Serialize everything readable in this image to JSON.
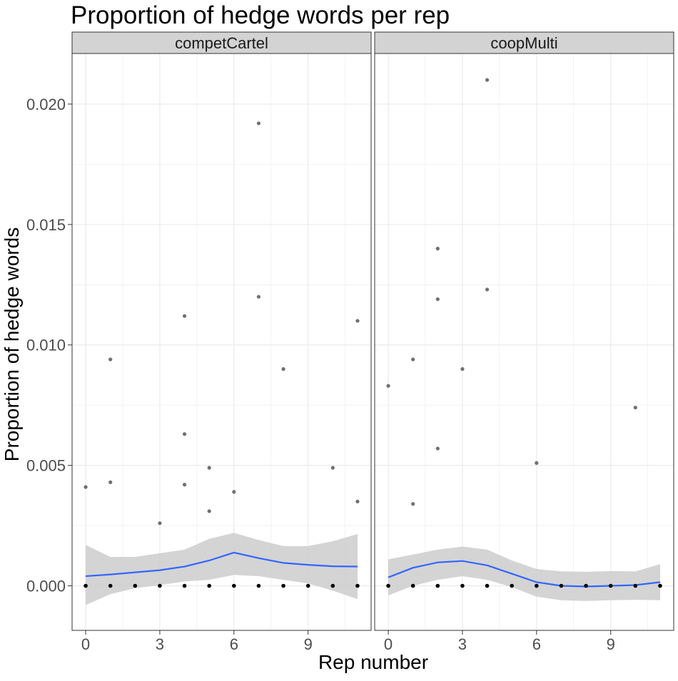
{
  "chart_data": {
    "type": "scatter",
    "title": "Proportion of hedge words per rep",
    "xlabel": "Rep number",
    "ylabel": "Proportion of hedge words",
    "xlim": [
      -0.55,
      11.55
    ],
    "ylim": [
      -0.00185,
      0.0221
    ],
    "x_ticks": [
      0,
      3,
      6,
      9
    ],
    "x_tick_labels": [
      "0",
      "3",
      "6",
      "9"
    ],
    "y_ticks": [
      0.0,
      0.005,
      0.01,
      0.015,
      0.02
    ],
    "y_tick_labels": [
      "0.000",
      "0.005",
      "0.010",
      "0.015",
      "0.020"
    ],
    "grid": true,
    "colors": {
      "point": "#707070",
      "zero_point": "#000000",
      "smooth_line": "#3366FF",
      "ribbon": "#cccccc",
      "strip_fill": "#d3d3d3",
      "grid": "#ebebeb",
      "panel_border": "#333333"
    },
    "panels": [
      {
        "name": "competCartel",
        "points": [
          {
            "x": 0,
            "y": 0.0041
          },
          {
            "x": 1,
            "y": 0.0094
          },
          {
            "x": 1,
            "y": 0.0043
          },
          {
            "x": 3,
            "y": 0.0026
          },
          {
            "x": 4,
            "y": 0.0112
          },
          {
            "x": 4,
            "y": 0.0063
          },
          {
            "x": 4,
            "y": 0.0042
          },
          {
            "x": 5,
            "y": 0.0049
          },
          {
            "x": 5,
            "y": 0.0031
          },
          {
            "x": 6,
            "y": 0.0039
          },
          {
            "x": 7,
            "y": 0.0192
          },
          {
            "x": 7,
            "y": 0.012
          },
          {
            "x": 8,
            "y": 0.009
          },
          {
            "x": 10,
            "y": 0.0049
          },
          {
            "x": 11,
            "y": 0.011
          },
          {
            "x": 11,
            "y": 0.0035
          }
        ],
        "zero_points_x": [
          0,
          1,
          2,
          3,
          4,
          5,
          6,
          7,
          8,
          9,
          10,
          11
        ],
        "smooth": {
          "x": [
            0,
            1,
            2,
            3,
            4,
            5,
            6,
            7,
            8,
            9,
            10,
            11
          ],
          "y": [
            0.0004,
            0.00047,
            0.00056,
            0.00065,
            0.0008,
            0.00105,
            0.00138,
            0.00115,
            0.00095,
            0.00087,
            0.00081,
            0.0008
          ],
          "lower": [
            -0.0008,
            -0.00035,
            -0.0001,
            3e-05,
            0.00018,
            0.00025,
            0.00045,
            0.0004,
            0.00025,
            0.0001,
            -0.0002,
            -0.00055
          ],
          "upper": [
            0.0017,
            0.0012,
            0.0012,
            0.00135,
            0.0015,
            0.00195,
            0.0022,
            0.0019,
            0.00165,
            0.00165,
            0.00185,
            0.00215
          ]
        }
      },
      {
        "name": "coopMulti",
        "points": [
          {
            "x": 0,
            "y": 0.0083
          },
          {
            "x": 1,
            "y": 0.0094
          },
          {
            "x": 1,
            "y": 0.0034
          },
          {
            "x": 2,
            "y": 0.014
          },
          {
            "x": 2,
            "y": 0.0119
          },
          {
            "x": 2,
            "y": 0.0057
          },
          {
            "x": 3,
            "y": 0.009
          },
          {
            "x": 4,
            "y": 0.021
          },
          {
            "x": 4,
            "y": 0.0123
          },
          {
            "x": 6,
            "y": 0.0051
          },
          {
            "x": 10,
            "y": 0.0074
          }
        ],
        "zero_points_x": [
          0,
          1,
          2,
          3,
          4,
          5,
          6,
          7,
          8,
          9,
          10,
          11
        ],
        "smooth": {
          "x": [
            0,
            1,
            2,
            3,
            4,
            5,
            6,
            7,
            8,
            9,
            10,
            11
          ],
          "y": [
            0.00035,
            0.00075,
            0.00097,
            0.00103,
            0.00085,
            0.0005,
            0.00015,
            0.0,
            -3e-05,
            0.0,
            3e-05,
            0.00015
          ],
          "lower": [
            -0.0004,
            0.0,
            0.00025,
            0.0004,
            0.00025,
            -5e-05,
            -0.00045,
            -0.0006,
            -0.00063,
            -0.0006,
            -0.00058,
            -0.0006
          ],
          "upper": [
            0.0011,
            0.0013,
            0.0015,
            0.00163,
            0.0015,
            0.00105,
            0.0007,
            0.0006,
            0.00058,
            0.00061,
            0.0006,
            0.0009
          ]
        }
      }
    ]
  }
}
